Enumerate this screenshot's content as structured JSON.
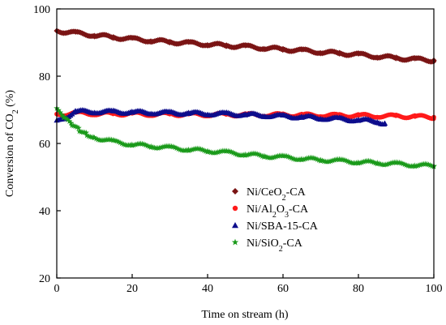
{
  "chart_data": {
    "type": "scatter",
    "xlabel": "Time on stream (h)",
    "ylabel": "Conversion of CO₂ (%)",
    "xlim": [
      0,
      100
    ],
    "ylim": [
      20,
      100
    ],
    "xticks": [
      0,
      20,
      40,
      60,
      80,
      100
    ],
    "yticks": [
      20,
      40,
      60,
      80,
      100
    ],
    "grid": false,
    "legend_position": "center-right",
    "series": [
      {
        "name": "Ni/CeO₂-CA",
        "label_parts": [
          "Ni/CeO",
          "2",
          "-CA"
        ],
        "marker": "diamond",
        "color": "#7a1414",
        "x": [
          0,
          5,
          10,
          15,
          20,
          25,
          30,
          35,
          40,
          45,
          50,
          55,
          60,
          65,
          70,
          75,
          80,
          85,
          90,
          95,
          100
        ],
        "y": [
          93.5,
          92.8,
          92.2,
          91.6,
          91.0,
          90.6,
          90.2,
          89.8,
          89.5,
          89.1,
          88.8,
          88.4,
          88.0,
          87.6,
          87.2,
          86.8,
          86.4,
          85.9,
          85.4,
          85.0,
          84.7
        ]
      },
      {
        "name": "Ni/Al₂O₃-CA",
        "label_parts": [
          "Ni/Al",
          "2",
          "O",
          "3",
          "-CA"
        ],
        "marker": "circle",
        "color": "#ff1a1a",
        "x": [
          0,
          5,
          10,
          15,
          20,
          25,
          30,
          35,
          40,
          45,
          50,
          55,
          60,
          65,
          70,
          75,
          80,
          85,
          90,
          95,
          100
        ],
        "y": [
          68.5,
          69.0,
          68.9,
          68.8,
          68.8,
          68.7,
          68.7,
          68.6,
          68.6,
          68.6,
          68.5,
          68.5,
          68.5,
          68.4,
          68.4,
          68.3,
          68.3,
          68.2,
          68.1,
          68.0,
          67.8
        ]
      },
      {
        "name": "Ni/SBA-15-CA",
        "label_parts": [
          "Ni/SBA-15-CA"
        ],
        "marker": "triangle",
        "color": "#0d0d8c",
        "x": [
          0,
          5,
          10,
          15,
          20,
          25,
          30,
          35,
          40,
          45,
          50,
          55,
          60,
          65,
          70,
          75,
          80,
          85,
          87
        ],
        "y": [
          66.5,
          69.5,
          69.5,
          69.4,
          69.3,
          69.2,
          69.1,
          69.0,
          68.9,
          68.8,
          68.6,
          68.4,
          68.1,
          67.9,
          67.6,
          67.3,
          67.0,
          66.6,
          66.0
        ]
      },
      {
        "name": "Ni/SiO₂-CA",
        "label_parts": [
          "Ni/SiO",
          "2",
          "-CA"
        ],
        "marker": "star",
        "color": "#1a9a1a",
        "x": [
          0,
          2,
          4,
          6,
          8,
          10,
          15,
          20,
          25,
          30,
          35,
          40,
          45,
          50,
          55,
          60,
          65,
          70,
          75,
          80,
          85,
          90,
          95,
          100
        ],
        "y": [
          70.0,
          67.5,
          65.5,
          64.0,
          62.8,
          61.8,
          60.5,
          59.7,
          59.2,
          58.7,
          58.2,
          57.8,
          57.3,
          56.8,
          56.3,
          55.9,
          55.5,
          55.1,
          54.8,
          54.5,
          54.2,
          53.9,
          53.6,
          53.3
        ]
      }
    ]
  }
}
